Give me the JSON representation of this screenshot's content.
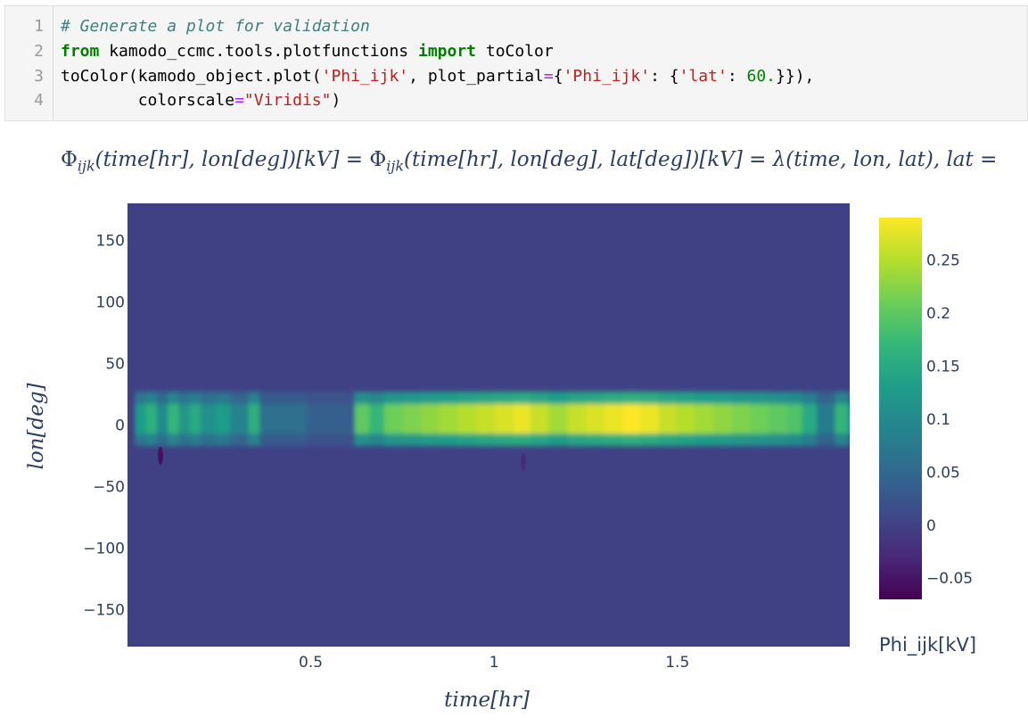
{
  "code_cell": {
    "line_numbers": [
      "1",
      "2",
      "3",
      "4"
    ],
    "line1": {
      "comment": "# Generate a plot for validation"
    },
    "line2": {
      "kw_from": "from",
      "module": " kamodo_ccmc.tools.plotfunctions ",
      "kw_import": "import",
      "name": " toColor"
    },
    "line3": {
      "a": "toColor(kamodo_object.plot(",
      "s1": "'Phi_ijk'",
      "b": ", plot_partial",
      "eq": "=",
      "c": "{",
      "s2": "'Phi_ijk'",
      "d": ": {",
      "s3": "'lat'",
      "e": ": ",
      "num": "60.",
      "f": "}}),"
    },
    "line4": {
      "indent": "        colorscale",
      "eq": "=",
      "s": "\"Viridis\"",
      "end": ")"
    }
  },
  "formula": "Φijk(time[hr], lon[deg])[kV] = Φijk(time[hr], lon[deg], lat[deg])[kV] = λ(time, lon, lat), lat =",
  "formula_parts": {
    "phi": "Φ",
    "sub": "ijk",
    "p1": "(time[hr], lon[deg])[kV] = ",
    "p2": "(time[hr], lon[deg], lat[deg])[kV] = λ(time, lon, lat), lat ="
  },
  "chart_data": {
    "type": "heatmap",
    "title": "",
    "xlabel": "time[hr]",
    "ylabel": "lon[deg]",
    "xlim": [
      0.0,
      1.97
    ],
    "ylim": [
      -180,
      180
    ],
    "x_ticks": [
      0.5,
      1,
      1.5
    ],
    "x_tick_labels": [
      "0.5",
      "1",
      "1.5"
    ],
    "y_ticks": [
      150,
      100,
      50,
      0,
      -50,
      -100,
      -150
    ],
    "y_tick_labels": [
      "150",
      "100",
      "50",
      "0",
      "−50",
      "−100",
      "−150"
    ],
    "colorscale": "Viridis",
    "colorbar": {
      "title": "Phi_ijk[kV]",
      "range": [
        -0.07,
        0.29
      ],
      "ticks": [
        0.25,
        0.2,
        0.15,
        0.1,
        0.05,
        0,
        -0.05
      ],
      "tick_labels": [
        "0.25",
        "0.2",
        "0.15",
        "0.1",
        "0.05",
        "0",
        "−0.05"
      ]
    },
    "background_value": 0.0,
    "band_center_lon_deg": 5,
    "band_half_width_lon_deg": 22,
    "segments": [
      {
        "x": 0.02,
        "value": 0.13
      },
      {
        "x": 0.05,
        "value": 0.16
      },
      {
        "x": 0.08,
        "value": 0.1
      },
      {
        "x": 0.11,
        "value": 0.17
      },
      {
        "x": 0.14,
        "value": 0.12
      },
      {
        "x": 0.17,
        "value": 0.15
      },
      {
        "x": 0.2,
        "value": 0.11
      },
      {
        "x": 0.24,
        "value": 0.13
      },
      {
        "x": 0.28,
        "value": 0.09
      },
      {
        "x": 0.33,
        "value": 0.16
      },
      {
        "x": 0.36,
        "value": 0.06
      },
      {
        "x": 0.49,
        "value": 0.04
      },
      {
        "x": 0.62,
        "value": 0.2
      },
      {
        "x": 0.66,
        "value": 0.17
      },
      {
        "x": 0.7,
        "value": 0.21
      },
      {
        "x": 0.75,
        "value": 0.22
      },
      {
        "x": 0.8,
        "value": 0.23
      },
      {
        "x": 0.85,
        "value": 0.24
      },
      {
        "x": 0.9,
        "value": 0.25
      },
      {
        "x": 0.95,
        "value": 0.26
      },
      {
        "x": 1.0,
        "value": 0.27
      },
      {
        "x": 1.05,
        "value": 0.28
      },
      {
        "x": 1.1,
        "value": 0.26
      },
      {
        "x": 1.15,
        "value": 0.24
      },
      {
        "x": 1.2,
        "value": 0.26
      },
      {
        "x": 1.25,
        "value": 0.27
      },
      {
        "x": 1.3,
        "value": 0.28
      },
      {
        "x": 1.35,
        "value": 0.29
      },
      {
        "x": 1.4,
        "value": 0.28
      },
      {
        "x": 1.45,
        "value": 0.26
      },
      {
        "x": 1.5,
        "value": 0.25
      },
      {
        "x": 1.55,
        "value": 0.24
      },
      {
        "x": 1.6,
        "value": 0.23
      },
      {
        "x": 1.65,
        "value": 0.22
      },
      {
        "x": 1.7,
        "value": 0.21
      },
      {
        "x": 1.75,
        "value": 0.2
      },
      {
        "x": 1.8,
        "value": 0.19
      },
      {
        "x": 1.84,
        "value": 0.15
      },
      {
        "x": 1.88,
        "value": 0.08
      },
      {
        "x": 1.93,
        "value": 0.17
      },
      {
        "x": 1.96,
        "value": 0.15
      }
    ],
    "dips": [
      {
        "x": 0.09,
        "lon": -25,
        "value": -0.06
      },
      {
        "x": 1.08,
        "lon": -30,
        "value": -0.03
      }
    ]
  }
}
